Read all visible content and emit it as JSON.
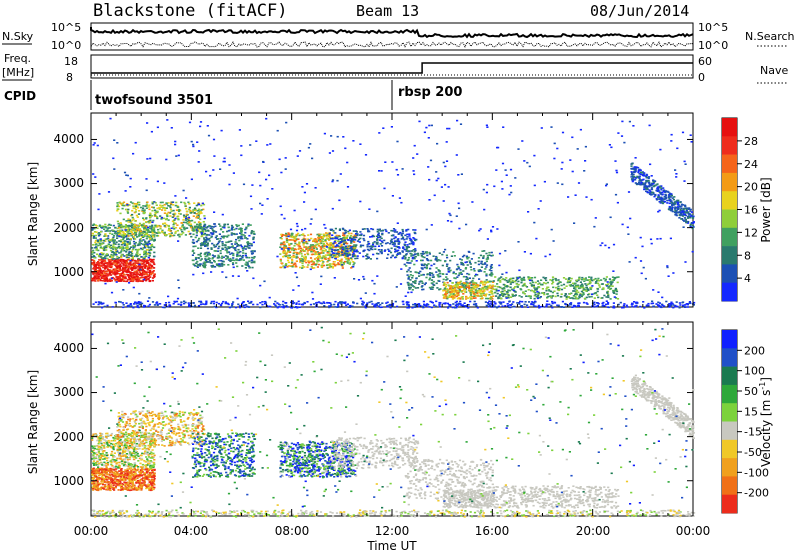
{
  "header": {
    "station": "Blackstone (fitACF)",
    "beam": "Beam 13",
    "date": "08/Jun/2014"
  },
  "panels": {
    "nsky": {
      "label": "N.Sky",
      "left_ticks": [
        "10^5",
        "10^0"
      ],
      "right_ticks": [
        "10^5",
        "10^0"
      ],
      "right_label": "N.Search"
    },
    "freq": {
      "label_top": "Freq.",
      "label_unit": "[MHz]",
      "left_ticks": [
        "18",
        "8"
      ],
      "right_ticks": [
        "60",
        "0"
      ],
      "right_label": "Nave"
    },
    "cpid": {
      "label": "CPID",
      "programs": [
        {
          "name": "twofsound 3501",
          "start_hour": 0
        },
        {
          "name": "rbsp 200",
          "start_hour": 12.25
        }
      ]
    }
  },
  "chart_data": [
    {
      "type": "heatmap",
      "name": "power",
      "ylabel": "Slant Range [km]",
      "yticks": [
        "1000",
        "2000",
        "3000",
        "4000"
      ],
      "ylim": [
        200,
        4600
      ],
      "xlim": [
        0,
        24
      ],
      "colorbar": {
        "label": "Power [dB]",
        "ticks": [
          "4",
          "8",
          "12",
          "16",
          "20",
          "24",
          "28"
        ],
        "range": [
          0,
          30
        ],
        "colors": [
          "#1428ff",
          "#1c50b4",
          "#2a7a6e",
          "#40a060",
          "#8fce3a",
          "#e8d21e",
          "#f39b16",
          "#f5641a",
          "#ee2c1c",
          "#e61010"
        ]
      }
    },
    {
      "type": "heatmap",
      "name": "velocity",
      "ylabel": "Slant Range [km]",
      "yticks": [
        "1000",
        "2000",
        "3000",
        "4000"
      ],
      "ylim": [
        200,
        4600
      ],
      "xlim": [
        0,
        24
      ],
      "xlabel": "Time UT",
      "xticks": [
        "00:00",
        "04:00",
        "08:00",
        "12:00",
        "16:00",
        "20:00",
        "00:00"
      ],
      "colorbar": {
        "label": "Velocity [m s",
        "label_sup": "-1",
        "label_end": "]",
        "ticks": [
          "200",
          "100",
          "50",
          "15",
          "-15",
          "-50",
          "-100",
          "-200"
        ],
        "colors": [
          "#1020ff",
          "#2050c8",
          "#1a7a50",
          "#2ea83a",
          "#7cd23c",
          "#c8c8c0",
          "#f0c828",
          "#f0a01e",
          "#f07018",
          "#ec2c1c"
        ]
      }
    }
  ]
}
